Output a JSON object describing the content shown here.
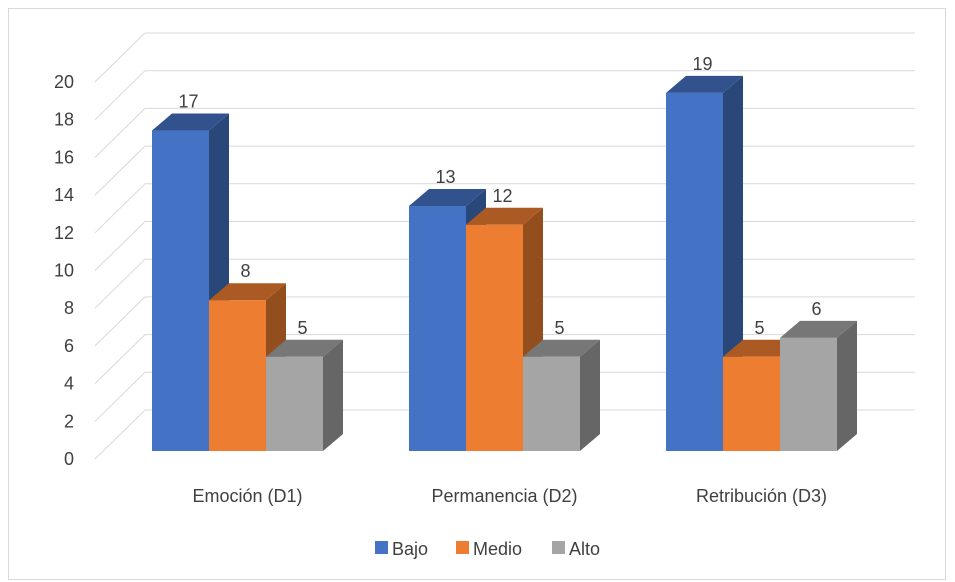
{
  "chart_data": {
    "type": "bar",
    "title": "",
    "xlabel": "",
    "ylabel": "",
    "ylim": [
      0,
      20
    ],
    "yticks": [
      0,
      2,
      4,
      6,
      8,
      10,
      12,
      14,
      16,
      18,
      20
    ],
    "grid": true,
    "legend_position": "bottom",
    "categories": [
      "Emoción (D1)",
      "Permanencia (D2)",
      "Retribución (D3)"
    ],
    "series": [
      {
        "name": "Bajo",
        "values": [
          17,
          13,
          19
        ],
        "color": "#4472C4"
      },
      {
        "name": "Medio",
        "values": [
          8,
          12,
          5
        ],
        "color": "#ED7D31"
      },
      {
        "name": "Alto",
        "values": [
          5,
          5,
          6
        ],
        "color": "#A5A5A5"
      }
    ]
  }
}
